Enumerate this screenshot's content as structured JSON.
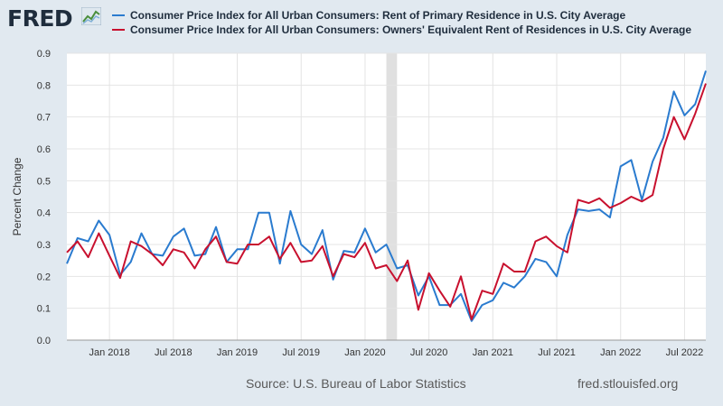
{
  "header": {
    "logo_text": "FRED",
    "logo_mark_icon": "line-chart-icon"
  },
  "footer": {
    "source": "Source: U.S. Bureau of Labor Statistics",
    "url": "fred.stlouisfed.org"
  },
  "chart_data": {
    "type": "line",
    "title": "",
    "xlabel": "",
    "ylabel": "Percent Change",
    "ylim": [
      0,
      0.9
    ],
    "yticks": [
      "0.0",
      "0.1",
      "0.2",
      "0.3",
      "0.4",
      "0.5",
      "0.6",
      "0.7",
      "0.8",
      "0.9"
    ],
    "xtick_labels": [
      "Jan 2018",
      "Jul 2018",
      "Jan 2019",
      "Jul 2019",
      "Jan 2020",
      "Jul 2020",
      "Jan 2021",
      "Jul 2021",
      "Jan 2022",
      "Jul 2022"
    ],
    "grid": true,
    "legend_position": "top",
    "x_start": "2017-09",
    "x_end": "2022-09",
    "recession": {
      "start": "2020-03",
      "end": "2020-04",
      "color": "#e0e0e0"
    },
    "series": [
      {
        "name": "Consumer Price Index for All Urban Consumers: Rent of Primary Residence in U.S. City Average",
        "color": "#2a7bcf",
        "values": [
          0.24,
          0.32,
          0.31,
          0.375,
          0.33,
          0.205,
          0.245,
          0.335,
          0.27,
          0.265,
          0.325,
          0.35,
          0.265,
          0.27,
          0.355,
          0.245,
          0.285,
          0.285,
          0.4,
          0.4,
          0.24,
          0.405,
          0.3,
          0.27,
          0.345,
          0.19,
          0.28,
          0.275,
          0.35,
          0.275,
          0.3,
          0.225,
          0.235,
          0.14,
          0.2,
          0.11,
          0.11,
          0.145,
          0.06,
          0.11,
          0.125,
          0.18,
          0.165,
          0.2,
          0.255,
          0.245,
          0.2,
          0.33,
          0.41,
          0.405,
          0.41,
          0.385,
          0.545,
          0.565,
          0.44,
          0.56,
          0.635,
          0.78,
          0.705,
          0.74,
          0.845
        ]
      },
      {
        "name": "Consumer Price Index for All Urban Consumers: Owners' Equivalent Rent of Residences in U.S. City Average",
        "color": "#c8102e",
        "values": [
          0.275,
          0.31,
          0.26,
          0.335,
          0.265,
          0.195,
          0.31,
          0.295,
          0.27,
          0.235,
          0.285,
          0.275,
          0.225,
          0.285,
          0.325,
          0.245,
          0.24,
          0.3,
          0.3,
          0.325,
          0.255,
          0.305,
          0.245,
          0.25,
          0.295,
          0.2,
          0.27,
          0.26,
          0.305,
          0.225,
          0.235,
          0.185,
          0.25,
          0.095,
          0.21,
          0.155,
          0.105,
          0.2,
          0.065,
          0.155,
          0.145,
          0.24,
          0.215,
          0.215,
          0.31,
          0.325,
          0.295,
          0.275,
          0.44,
          0.43,
          0.445,
          0.415,
          0.43,
          0.45,
          0.435,
          0.455,
          0.6,
          0.7,
          0.63,
          0.71,
          0.805
        ]
      }
    ]
  }
}
